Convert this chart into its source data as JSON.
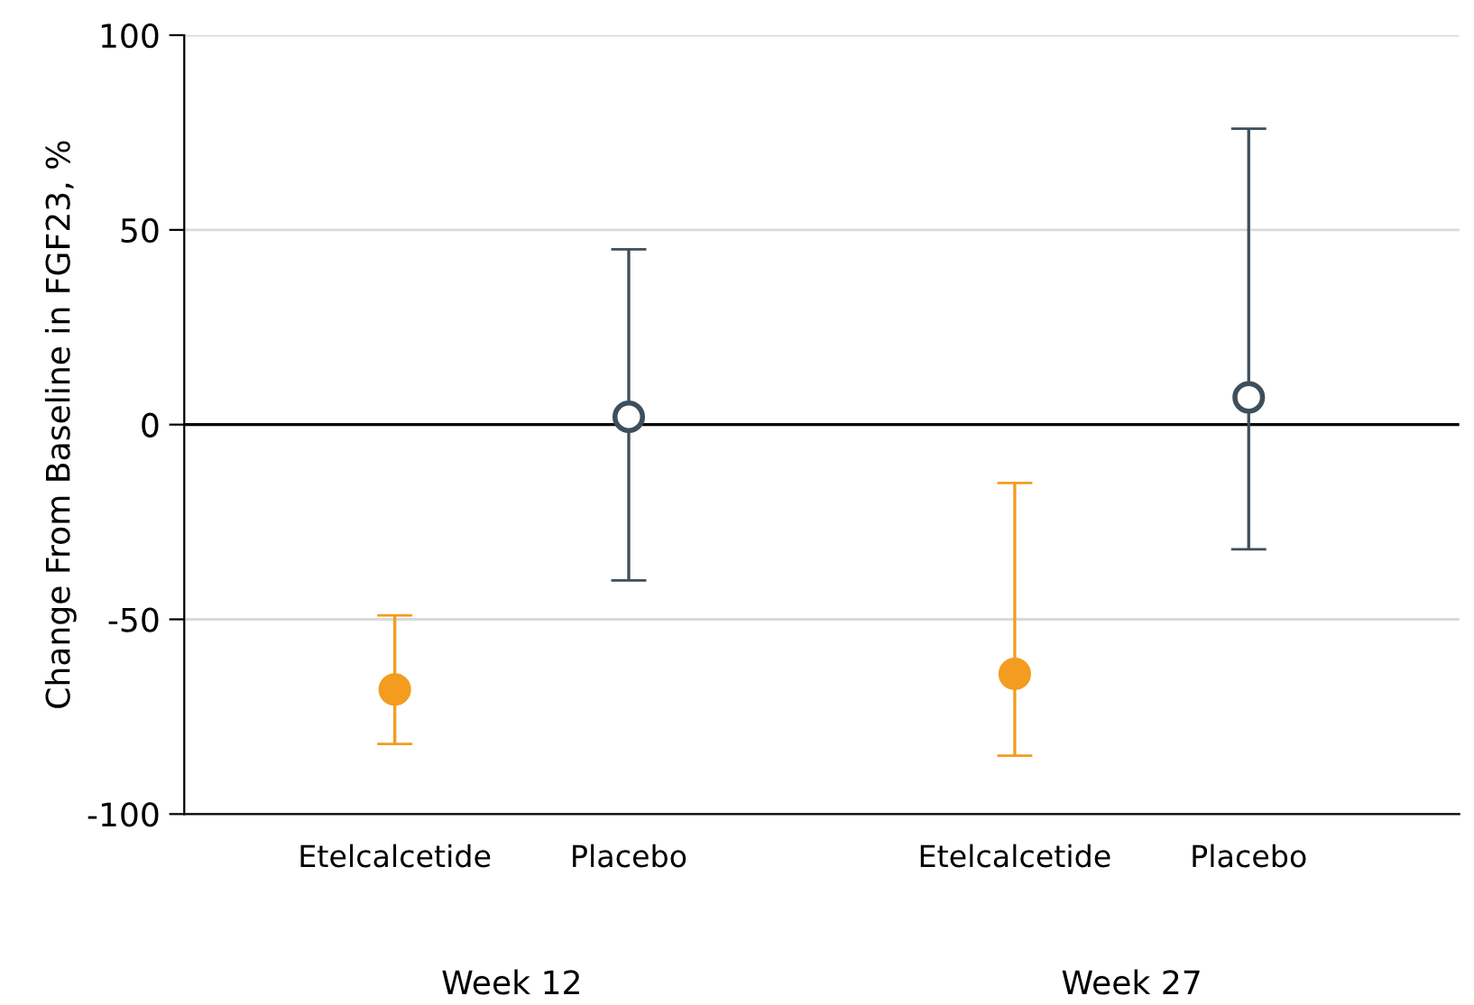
{
  "chart_data": {
    "type": "scatter",
    "ylabel": "Change From Baseline in FGF23, %",
    "categories": [
      "Etelcalcetide",
      "Placebo",
      "Etelcalcetide",
      "Placebo"
    ],
    "series": [
      {
        "color": "#f39c1f",
        "values": [
          -68,
          null,
          -64,
          null
        ],
        "errors": [
          [
            -82,
            -49
          ],
          null,
          [
            -85,
            -15
          ],
          null
        ]
      },
      {
        "color": "#3d4f5c",
        "values": [
          null,
          2,
          null,
          7
        ],
        "errors": [
          null,
          [
            -40,
            45
          ],
          null,
          [
            -32,
            76
          ]
        ]
      }
    ],
    "annotations": [
      "Week 12",
      "Week 27"
    ],
    "ylim": [
      -100,
      100
    ],
    "yticks": [
      -100,
      -50,
      0,
      50,
      100
    ],
    "ref_lines": [
      {
        "axis": "y",
        "value": 0,
        "color": "#000000"
      }
    ],
    "grid": "y",
    "marker": "circle",
    "legend": false
  }
}
